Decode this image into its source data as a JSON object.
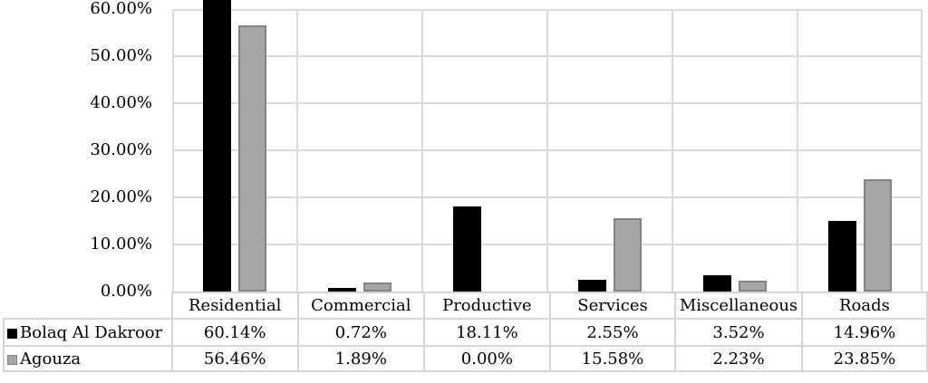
{
  "chart_data": {
    "type": "bar",
    "categories": [
      "Residential",
      "Commercial",
      "Productive",
      "Services",
      "Miscellaneous",
      "Roads"
    ],
    "series": [
      {
        "name": "Bolaq Al Dakroor",
        "values": [
          60.14,
          0.72,
          18.11,
          2.55,
          3.52,
          14.96
        ],
        "color": "#000000",
        "border_color": "#000000"
      },
      {
        "name": "Agouza",
        "values": [
          56.46,
          1.89,
          0.0,
          15.58,
          2.23,
          23.85
        ],
        "color": "#a6a6a6",
        "border_color": "#828282"
      }
    ],
    "title": "",
    "xlabel": "",
    "ylabel": "",
    "ylim": [
      0,
      60
    ],
    "yticks": [
      0,
      10,
      20,
      30,
      40,
      50,
      60
    ],
    "ytick_labels": [
      "0.00%",
      "10.00%",
      "20.00%",
      "30.00%",
      "40.00%",
      "50.00%",
      "60.00%"
    ],
    "value_format": "percent_2dp",
    "grid": true,
    "legend_position": "table-left"
  },
  "table": {
    "row_labels": [
      "Bolaq Al Dakroor",
      "Agouza"
    ],
    "cell_values": [
      [
        "60.14%",
        "0.72%",
        "18.11%",
        "2.55%",
        "3.52%",
        "14.96%"
      ],
      [
        "56.46%",
        "1.89%",
        "0.00%",
        "15.58%",
        "2.23%",
        "23.85%"
      ]
    ]
  },
  "colors": {
    "background": "#ffffff",
    "gridline": "#dadada",
    "table_border": "#d4d4d4",
    "text": "#000000",
    "series1_fill": "#000000",
    "series2_fill": "#a6a6a6",
    "series2_border": "#828282"
  }
}
